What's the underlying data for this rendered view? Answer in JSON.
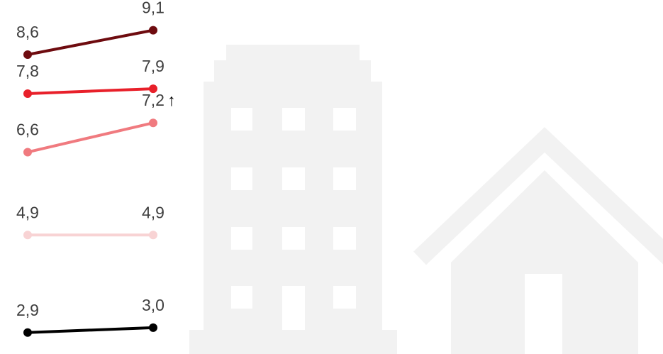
{
  "chart_data": {
    "type": "slope",
    "categories": [
      null,
      null
    ],
    "ylim": [
      2.46,
      9.72
    ],
    "series": [
      {
        "color": "#6e0b0f",
        "values": [
          8.6,
          9.1
        ],
        "value_labels": [
          "8,6",
          "9,1"
        ]
      },
      {
        "color": "#e8202a",
        "values": [
          7.8,
          7.9
        ],
        "value_labels": [
          "7,8",
          "7,9"
        ]
      },
      {
        "color": "#f07a7f",
        "values": [
          6.6,
          7.2
        ],
        "value_labels": [
          "6,6",
          "7,2"
        ]
      },
      {
        "color": "#f8d3d4",
        "values": [
          4.9,
          4.9
        ],
        "value_labels": [
          "4,9",
          "4,9"
        ]
      },
      {
        "color": "#000000",
        "values": [
          2.9,
          3.0
        ],
        "value_labels": [
          "2,9",
          "3,0"
        ]
      }
    ],
    "annotations": [
      {
        "text": "↑"
      }
    ]
  }
}
